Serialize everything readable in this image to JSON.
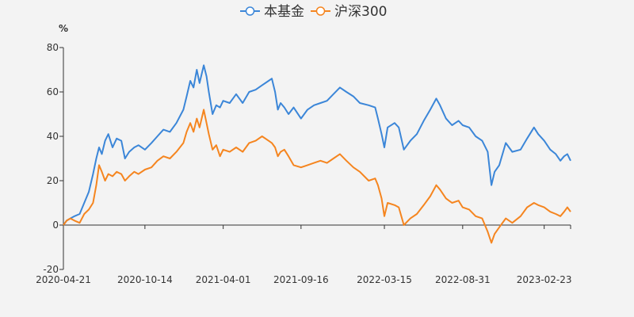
{
  "chart_data": {
    "type": "line",
    "y_unit": "%",
    "ylim": [
      -20,
      80
    ],
    "yticks": [
      -20,
      0,
      20,
      40,
      60,
      80
    ],
    "x_range": [
      "2020-04-21",
      "2023-04-21"
    ],
    "xticks": [
      "2020-04-21",
      "2020-10-14",
      "2021-04-01",
      "2021-09-16",
      "2022-03-15",
      "2022-08-31",
      "2023-02-23"
    ],
    "legend_position": "top-center",
    "grid": false,
    "series": [
      {
        "name": "本基金",
        "color": "#3b86d8",
        "points": [
          [
            "2020-04-21",
            0
          ],
          [
            "2020-04-28",
            2
          ],
          [
            "2020-05-06",
            3
          ],
          [
            "2020-05-15",
            4
          ],
          [
            "2020-05-26",
            5
          ],
          [
            "2020-06-05",
            10
          ],
          [
            "2020-06-15",
            15
          ],
          [
            "2020-06-24",
            23
          ],
          [
            "2020-07-01",
            30
          ],
          [
            "2020-07-07",
            35
          ],
          [
            "2020-07-13",
            32
          ],
          [
            "2020-07-20",
            38
          ],
          [
            "2020-07-27",
            41
          ],
          [
            "2020-08-05",
            35
          ],
          [
            "2020-08-14",
            39
          ],
          [
            "2020-08-24",
            38
          ],
          [
            "2020-09-01",
            30
          ],
          [
            "2020-09-10",
            33
          ],
          [
            "2020-09-21",
            35
          ],
          [
            "2020-09-30",
            36
          ],
          [
            "2020-10-14",
            34
          ],
          [
            "2020-10-28",
            37
          ],
          [
            "2020-11-10",
            40
          ],
          [
            "2020-11-23",
            43
          ],
          [
            "2020-12-07",
            42
          ],
          [
            "2020-12-21",
            46
          ],
          [
            "2021-01-05",
            52
          ],
          [
            "2021-01-12",
            58
          ],
          [
            "2021-01-20",
            65
          ],
          [
            "2021-01-27",
            62
          ],
          [
            "2021-02-03",
            70
          ],
          [
            "2021-02-09",
            64
          ],
          [
            "2021-02-18",
            72
          ],
          [
            "2021-02-24",
            67
          ],
          [
            "2021-03-01",
            60
          ],
          [
            "2021-03-09",
            50
          ],
          [
            "2021-03-17",
            54
          ],
          [
            "2021-03-25",
            53
          ],
          [
            "2021-04-01",
            56
          ],
          [
            "2021-04-15",
            55
          ],
          [
            "2021-04-29",
            59
          ],
          [
            "2021-05-13",
            55
          ],
          [
            "2021-05-27",
            60
          ],
          [
            "2021-06-10",
            61
          ],
          [
            "2021-06-24",
            63
          ],
          [
            "2021-07-08",
            65
          ],
          [
            "2021-07-15",
            66
          ],
          [
            "2021-07-22",
            60
          ],
          [
            "2021-07-28",
            52
          ],
          [
            "2021-08-03",
            55
          ],
          [
            "2021-08-11",
            53
          ],
          [
            "2021-08-20",
            50
          ],
          [
            "2021-08-31",
            53
          ],
          [
            "2021-09-16",
            48
          ],
          [
            "2021-09-30",
            52
          ],
          [
            "2021-10-14",
            54
          ],
          [
            "2021-10-28",
            55
          ],
          [
            "2021-11-11",
            56
          ],
          [
            "2021-11-25",
            59
          ],
          [
            "2021-12-09",
            62
          ],
          [
            "2021-12-23",
            60
          ],
          [
            "2022-01-07",
            58
          ],
          [
            "2022-01-21",
            55
          ],
          [
            "2022-02-09",
            54
          ],
          [
            "2022-02-23",
            53
          ],
          [
            "2022-03-01",
            48
          ],
          [
            "2022-03-09",
            41
          ],
          [
            "2022-03-15",
            35
          ],
          [
            "2022-03-22",
            44
          ],
          [
            "2022-04-06",
            46
          ],
          [
            "2022-04-15",
            44
          ],
          [
            "2022-04-26",
            34
          ],
          [
            "2022-05-10",
            38
          ],
          [
            "2022-05-24",
            41
          ],
          [
            "2022-06-08",
            47
          ],
          [
            "2022-06-22",
            52
          ],
          [
            "2022-07-05",
            57
          ],
          [
            "2022-07-13",
            54
          ],
          [
            "2022-07-26",
            48
          ],
          [
            "2022-08-08",
            45
          ],
          [
            "2022-08-22",
            47
          ],
          [
            "2022-08-31",
            45
          ],
          [
            "2022-09-14",
            44
          ],
          [
            "2022-09-28",
            40
          ],
          [
            "2022-10-12",
            38
          ],
          [
            "2022-10-24",
            33
          ],
          [
            "2022-11-01",
            18
          ],
          [
            "2022-11-08",
            24
          ],
          [
            "2022-11-18",
            27
          ],
          [
            "2022-12-02",
            37
          ],
          [
            "2022-12-16",
            33
          ],
          [
            "2023-01-03",
            34
          ],
          [
            "2023-01-17",
            39
          ],
          [
            "2023-02-01",
            44
          ],
          [
            "2023-02-10",
            41
          ],
          [
            "2023-02-23",
            38
          ],
          [
            "2023-03-08",
            34
          ],
          [
            "2023-03-20",
            32
          ],
          [
            "2023-03-30",
            29
          ],
          [
            "2023-04-07",
            31
          ],
          [
            "2023-04-14",
            32
          ],
          [
            "2023-04-21",
            29
          ]
        ]
      },
      {
        "name": "沪深300",
        "color": "#f5851f",
        "points": [
          [
            "2020-04-21",
            0
          ],
          [
            "2020-04-28",
            2
          ],
          [
            "2020-05-06",
            3
          ],
          [
            "2020-05-15",
            2
          ],
          [
            "2020-05-26",
            1
          ],
          [
            "2020-06-05",
            5
          ],
          [
            "2020-06-15",
            7
          ],
          [
            "2020-06-24",
            10
          ],
          [
            "2020-07-01",
            18
          ],
          [
            "2020-07-07",
            27
          ],
          [
            "2020-07-13",
            24
          ],
          [
            "2020-07-20",
            20
          ],
          [
            "2020-07-27",
            23
          ],
          [
            "2020-08-05",
            22
          ],
          [
            "2020-08-14",
            24
          ],
          [
            "2020-08-24",
            23
          ],
          [
            "2020-09-01",
            20
          ],
          [
            "2020-09-10",
            22
          ],
          [
            "2020-09-21",
            24
          ],
          [
            "2020-09-30",
            23
          ],
          [
            "2020-10-14",
            25
          ],
          [
            "2020-10-28",
            26
          ],
          [
            "2020-11-10",
            29
          ],
          [
            "2020-11-23",
            31
          ],
          [
            "2020-12-07",
            30
          ],
          [
            "2020-12-21",
            33
          ],
          [
            "2021-01-05",
            37
          ],
          [
            "2021-01-12",
            42
          ],
          [
            "2021-01-20",
            46
          ],
          [
            "2021-01-27",
            42
          ],
          [
            "2021-02-03",
            48
          ],
          [
            "2021-02-09",
            44
          ],
          [
            "2021-02-18",
            52
          ],
          [
            "2021-02-24",
            46
          ],
          [
            "2021-03-01",
            41
          ],
          [
            "2021-03-09",
            34
          ],
          [
            "2021-03-17",
            36
          ],
          [
            "2021-03-25",
            31
          ],
          [
            "2021-04-01",
            34
          ],
          [
            "2021-04-15",
            33
          ],
          [
            "2021-04-29",
            35
          ],
          [
            "2021-05-13",
            33
          ],
          [
            "2021-05-27",
            37
          ],
          [
            "2021-06-10",
            38
          ],
          [
            "2021-06-24",
            40
          ],
          [
            "2021-07-08",
            38
          ],
          [
            "2021-07-15",
            37
          ],
          [
            "2021-07-22",
            35
          ],
          [
            "2021-07-28",
            31
          ],
          [
            "2021-08-03",
            33
          ],
          [
            "2021-08-11",
            34
          ],
          [
            "2021-08-20",
            31
          ],
          [
            "2021-08-31",
            27
          ],
          [
            "2021-09-16",
            26
          ],
          [
            "2021-09-30",
            27
          ],
          [
            "2021-10-14",
            28
          ],
          [
            "2021-10-28",
            29
          ],
          [
            "2021-11-11",
            28
          ],
          [
            "2021-11-25",
            30
          ],
          [
            "2021-12-09",
            32
          ],
          [
            "2021-12-23",
            29
          ],
          [
            "2022-01-07",
            26
          ],
          [
            "2022-01-21",
            24
          ],
          [
            "2022-02-09",
            20
          ],
          [
            "2022-02-23",
            21
          ],
          [
            "2022-03-01",
            18
          ],
          [
            "2022-03-09",
            12
          ],
          [
            "2022-03-15",
            4
          ],
          [
            "2022-03-22",
            10
          ],
          [
            "2022-04-06",
            9
          ],
          [
            "2022-04-15",
            8
          ],
          [
            "2022-04-26",
            0
          ],
          [
            "2022-05-10",
            3
          ],
          [
            "2022-05-24",
            5
          ],
          [
            "2022-06-08",
            9
          ],
          [
            "2022-06-22",
            13
          ],
          [
            "2022-07-05",
            18
          ],
          [
            "2022-07-13",
            16
          ],
          [
            "2022-07-26",
            12
          ],
          [
            "2022-08-08",
            10
          ],
          [
            "2022-08-22",
            11
          ],
          [
            "2022-08-31",
            8
          ],
          [
            "2022-09-14",
            7
          ],
          [
            "2022-09-28",
            4
          ],
          [
            "2022-10-12",
            3
          ],
          [
            "2022-10-24",
            -3
          ],
          [
            "2022-11-01",
            -8
          ],
          [
            "2022-11-08",
            -4
          ],
          [
            "2022-11-18",
            -1
          ],
          [
            "2022-12-02",
            3
          ],
          [
            "2022-12-16",
            1
          ],
          [
            "2023-01-03",
            4
          ],
          [
            "2023-01-17",
            8
          ],
          [
            "2023-02-01",
            10
          ],
          [
            "2023-02-10",
            9
          ],
          [
            "2023-02-23",
            8
          ],
          [
            "2023-03-08",
            6
          ],
          [
            "2023-03-20",
            5
          ],
          [
            "2023-03-30",
            4
          ],
          [
            "2023-04-07",
            6
          ],
          [
            "2023-04-14",
            8
          ],
          [
            "2023-04-21",
            6
          ]
        ]
      }
    ]
  }
}
